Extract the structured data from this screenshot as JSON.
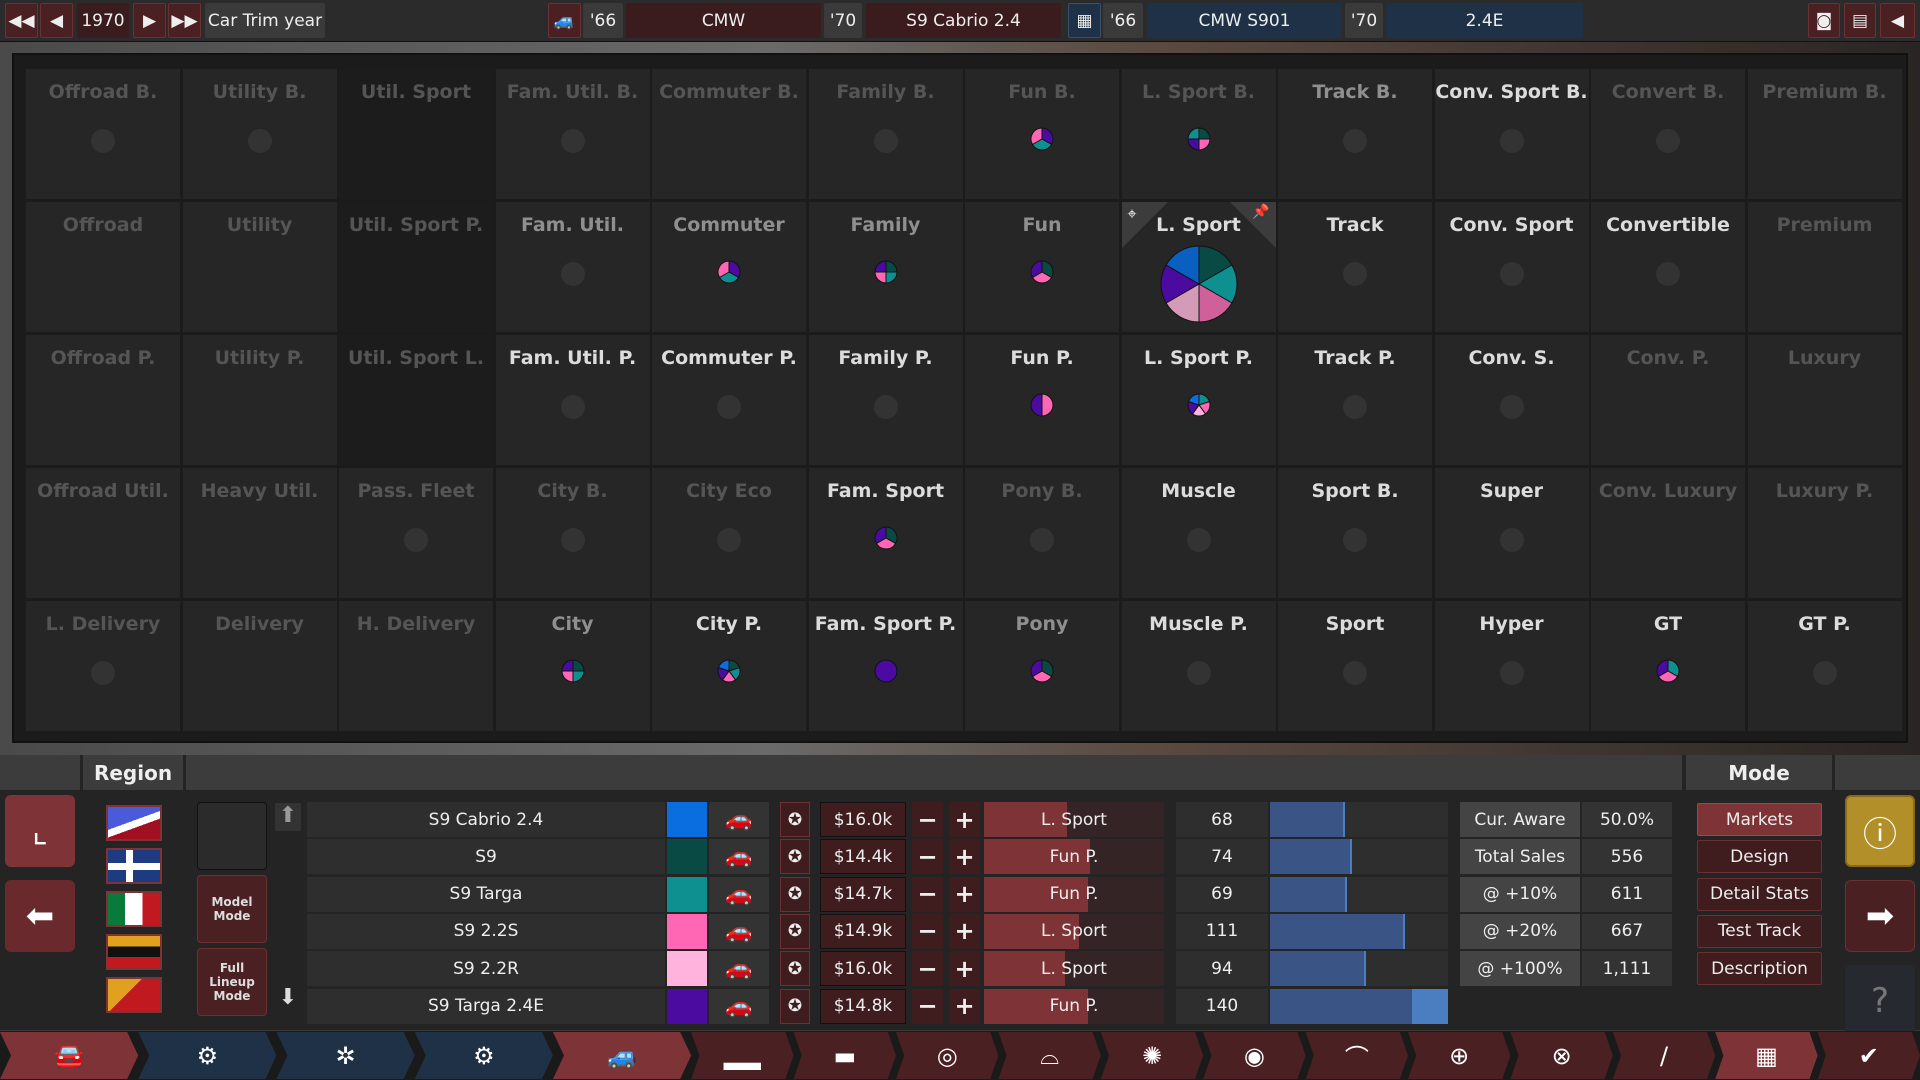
{
  "topbar": {
    "year": "1970",
    "year_label": "Car Trim year",
    "model_year_from": "'66",
    "brand": "CMW",
    "model_year_to": "'70",
    "trim": "S9 Cabrio 2.4",
    "engine_year_from": "'66",
    "engine_family": "CMW S901",
    "engine_year_to": "'70",
    "engine_variant": "2.4E",
    "icons": [
      "rewind-icon",
      "prev-icon",
      "next-icon",
      "fast-forward-icon",
      "car-icon",
      "engine-icon",
      "camera-icon",
      "spreadsheet-icon",
      "back-arrow-icon"
    ]
  },
  "markets": [
    [
      {
        "l": "Offroad B.",
        "v": "dim",
        "m": "dot"
      },
      {
        "l": "Utility B.",
        "v": "dim",
        "m": "dot"
      },
      {
        "l": "Util. Sport",
        "v": "dim",
        "m": "none",
        "dark": true
      },
      {
        "l": "Fam. Util. B.",
        "v": "dim",
        "m": "dot"
      },
      {
        "l": "Commuter B.",
        "v": "dim",
        "m": "none"
      },
      {
        "l": "Family B.",
        "v": "dim",
        "m": "dot"
      },
      {
        "l": "Fun B.",
        "v": "dim",
        "m": "pie",
        "s": [
          "#4b0aa0",
          "#0f9090",
          "#ff66b3"
        ]
      },
      {
        "l": "L. Sport B.",
        "v": "dim",
        "m": "pie",
        "s": [
          "#0a4a45",
          "#ff66b3",
          "#4b0aa0",
          "#0f9090"
        ]
      },
      {
        "l": "Track B.",
        "v": "mid",
        "m": "dot"
      },
      {
        "l": "Conv. Sport B.",
        "v": "bright",
        "m": "dot"
      },
      {
        "l": "Convert B.",
        "v": "dim",
        "m": "dot"
      },
      {
        "l": "Premium B.",
        "v": "dim",
        "m": "none"
      }
    ],
    [
      {
        "l": "Offroad",
        "v": "dim",
        "m": "none"
      },
      {
        "l": "Utility",
        "v": "dim",
        "m": "none"
      },
      {
        "l": "Util. Sport P.",
        "v": "dim",
        "m": "none",
        "dark": true
      },
      {
        "l": "Fam. Util.",
        "v": "mid",
        "m": "dot"
      },
      {
        "l": "Commuter",
        "v": "mid",
        "m": "pie",
        "s": [
          "#4b0aa0",
          "#0f9090",
          "#ff66b3"
        ]
      },
      {
        "l": "Family",
        "v": "mid",
        "m": "pie",
        "s": [
          "#0a4a45",
          "#0f9090",
          "#ff66b3",
          "#4b0aa0"
        ]
      },
      {
        "l": "Fun",
        "v": "mid",
        "m": "pie",
        "s": [
          "#0a4a45",
          "#ff66b3",
          "#4b0aa0"
        ]
      },
      {
        "l": "L. Sport",
        "v": "bright",
        "m": "bigpie",
        "selected": true,
        "s": [
          "#0a4a45",
          "#0f9090",
          "#d0609a",
          "#d49ab8",
          "#4b0aa0",
          "#0a60c0"
        ]
      },
      {
        "l": "Track",
        "v": "bright",
        "m": "dot"
      },
      {
        "l": "Conv. Sport",
        "v": "bright",
        "m": "dot"
      },
      {
        "l": "Convertible",
        "v": "bright",
        "m": "dot"
      },
      {
        "l": "Premium",
        "v": "dim",
        "m": "none"
      }
    ],
    [
      {
        "l": "Offroad P.",
        "v": "dim",
        "m": "none"
      },
      {
        "l": "Utility P.",
        "v": "dim",
        "m": "none"
      },
      {
        "l": "Util. Sport L.",
        "v": "dim",
        "m": "none",
        "dark": true
      },
      {
        "l": "Fam. Util. P.",
        "v": "bright",
        "m": "dot"
      },
      {
        "l": "Commuter P.",
        "v": "bright",
        "m": "dot"
      },
      {
        "l": "Family P.",
        "v": "bright",
        "m": "dot"
      },
      {
        "l": "Fun P.",
        "v": "bright",
        "m": "pie",
        "s": [
          "#ff66b3",
          "#4b0aa0"
        ]
      },
      {
        "l": "L. Sport P.",
        "v": "bright",
        "m": "pie",
        "s": [
          "#0f9090",
          "#ff66b3",
          "#ffb3dd",
          "#4b0aa0",
          "#0a6ee0"
        ]
      },
      {
        "l": "Track P.",
        "v": "bright",
        "m": "dot"
      },
      {
        "l": "Conv. S.",
        "v": "bright",
        "m": "dot"
      },
      {
        "l": "Conv. P.",
        "v": "dim",
        "m": "none"
      },
      {
        "l": "Luxury",
        "v": "dim",
        "m": "none"
      }
    ],
    [
      {
        "l": "Offroad Util.",
        "v": "dim",
        "m": "none"
      },
      {
        "l": "Heavy Util.",
        "v": "dim",
        "m": "none"
      },
      {
        "l": "Pass. Fleet",
        "v": "dim",
        "m": "dot"
      },
      {
        "l": "City B.",
        "v": "dim",
        "m": "dot"
      },
      {
        "l": "City Eco",
        "v": "dim",
        "m": "dot"
      },
      {
        "l": "Fam. Sport",
        "v": "bright",
        "m": "pie",
        "s": [
          "#0a4a45",
          "#ff66b3",
          "#4b0aa0"
        ]
      },
      {
        "l": "Pony B.",
        "v": "dim",
        "m": "dot"
      },
      {
        "l": "Muscle",
        "v": "bright",
        "m": "dot"
      },
      {
        "l": "Sport B.",
        "v": "bright",
        "m": "dot"
      },
      {
        "l": "Super",
        "v": "bright",
        "m": "dot"
      },
      {
        "l": "Conv. Luxury",
        "v": "dim",
        "m": "none"
      },
      {
        "l": "Luxury P.",
        "v": "dim",
        "m": "none"
      }
    ],
    [
      {
        "l": "L. Delivery",
        "v": "dim",
        "m": "dot"
      },
      {
        "l": "Delivery",
        "v": "dim",
        "m": "none"
      },
      {
        "l": "H. Delivery",
        "v": "dim",
        "m": "none"
      },
      {
        "l": "City",
        "v": "mid",
        "m": "pie",
        "s": [
          "#0a4a45",
          "#0f9090",
          "#ff66b3",
          "#4b0aa0"
        ]
      },
      {
        "l": "City P.",
        "v": "bright",
        "m": "pie",
        "s": [
          "#0a4a45",
          "#0f9090",
          "#ff66b3",
          "#4b0aa0",
          "#0a6ee0"
        ]
      },
      {
        "l": "Fam. Sport P.",
        "v": "bright",
        "m": "pie",
        "s": [
          "#4b0aa0"
        ]
      },
      {
        "l": "Pony",
        "v": "mid",
        "m": "pie",
        "s": [
          "#0a4a45",
          "#ff66b3",
          "#4b0aa0"
        ]
      },
      {
        "l": "Muscle P.",
        "v": "bright",
        "m": "dot"
      },
      {
        "l": "Sport",
        "v": "bright",
        "m": "dot"
      },
      {
        "l": "Hyper",
        "v": "bright",
        "m": "dot"
      },
      {
        "l": "GT",
        "v": "bright",
        "m": "pie",
        "s": [
          "#0f9090",
          "#ff66b3",
          "#4b0aa0"
        ]
      },
      {
        "l": "GT P.",
        "v": "bright",
        "m": "dot"
      }
    ]
  ],
  "bottom": {
    "region_header": "Region",
    "mode_header": "Mode",
    "model_mode": "Model Mode",
    "full_lineup_mode": "Full Lineup Mode",
    "trims": [
      {
        "name": "S9 Cabrio 2.4",
        "color": "#0a6ee0",
        "price": "$16.0k",
        "market": "L. Sport",
        "market_fill": 0.46,
        "score": "68",
        "score_fill": 0.42
      },
      {
        "name": "S9",
        "color": "#0a4a45",
        "price": "$14.4k",
        "market": "Fun P.",
        "market_fill": 0.59,
        "score": "74",
        "score_fill": 0.46
      },
      {
        "name": "S9 Targa",
        "color": "#0f9090",
        "price": "$14.7k",
        "market": "Fun P.",
        "market_fill": 0.58,
        "score": "69",
        "score_fill": 0.43
      },
      {
        "name": "S9 2.2S",
        "color": "#ff66b3",
        "price": "$14.9k",
        "market": "L. Sport",
        "market_fill": 0.53,
        "score": "111",
        "score_fill": 0.76
      },
      {
        "name": "S9 2.2R",
        "color": "#ffb3dd",
        "price": "$16.0k",
        "market": "L. Sport",
        "market_fill": 0.45,
        "score": "94",
        "score_fill": 0.54
      },
      {
        "name": "S9 Targa 2.4E",
        "color": "#4b0aa0",
        "price": "$14.8k",
        "market": "Fun P.",
        "market_fill": 0.58,
        "score": "140",
        "score_fill": 1.0
      }
    ],
    "stats": [
      {
        "label": "Cur. Aware",
        "value": "50.0%"
      },
      {
        "label": "Total Sales",
        "value": "556"
      },
      {
        "label": "@ +10%",
        "value": "611"
      },
      {
        "label": "@ +20%",
        "value": "667"
      },
      {
        "label": "@ +100%",
        "value": "1,111"
      }
    ],
    "modes": [
      {
        "label": "Markets",
        "active": true
      },
      {
        "label": "Design"
      },
      {
        "label": "Detail Stats"
      },
      {
        "label": "Test Track"
      },
      {
        "label": "Description"
      }
    ]
  },
  "bottom_nav": [
    "car-body-icon",
    "family-sheet-icon",
    "engine-family-icon",
    "engine-tree-icon",
    "trim-tree-icon",
    "trim-models-icon",
    "chassis-icon",
    "headlight-icon",
    "engine-fan-icon",
    "wheel-icon",
    "brake-icon",
    "aero-icon",
    "steering-icon",
    "suspension-icon",
    "interior-icon",
    "test-track-icon",
    "finish-check-icon"
  ],
  "colors": {
    "accent_red": "#7e3336",
    "panel_navy": "#1f3146",
    "bar_blue": "#3a5585",
    "bar_blue_light": "#4a7ec0",
    "warning_gold": "#b38f2a"
  }
}
